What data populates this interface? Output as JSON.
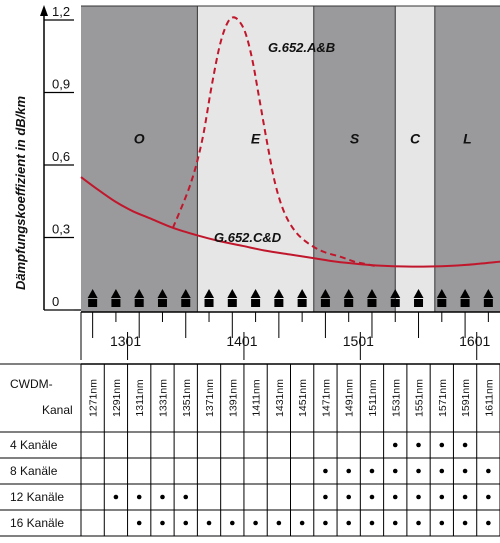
{
  "chart_data": {
    "type": "line",
    "ylabel": "Dämpfungskoeffizient in dB/km",
    "y_ticks": [
      "0",
      "0,3",
      "0,6",
      "0,9",
      "1,2"
    ],
    "ylim": [
      0,
      1.25
    ],
    "xlim": [
      1261,
      1621
    ],
    "x_tick_labels": [
      "1301",
      "1401",
      "1501",
      "1601"
    ],
    "x_ticks": [
      1301,
      1401,
      1501,
      1601
    ],
    "bands": [
      {
        "label": "O",
        "start": 1261,
        "end": 1361,
        "color": "#9a9a9c"
      },
      {
        "label": "E",
        "start": 1361,
        "end": 1461,
        "color": "#e6e6e6"
      },
      {
        "label": "S",
        "start": 1461,
        "end": 1531,
        "color": "#9a9a9c"
      },
      {
        "label": "C",
        "start": 1531,
        "end": 1565,
        "color": "#e6e6e6"
      },
      {
        "label": "L",
        "start": 1565,
        "end": 1621,
        "color": "#9a9a9c"
      }
    ],
    "series": [
      {
        "name": "G.652.A&B",
        "style": "dashed",
        "color": "#c0172c",
        "x": [
          1340,
          1355,
          1365,
          1373,
          1380,
          1386,
          1391,
          1396,
          1402,
          1408,
          1414,
          1421,
          1428,
          1436,
          1446,
          1458,
          1470,
          1484,
          1496,
          1506,
          1516
        ],
        "y": [
          0.34,
          0.52,
          0.7,
          0.92,
          1.09,
          1.18,
          1.21,
          1.2,
          1.15,
          1.04,
          0.88,
          0.69,
          0.52,
          0.4,
          0.32,
          0.27,
          0.24,
          0.22,
          0.2,
          0.19,
          0.18
        ]
      },
      {
        "name": "G.652.C&D",
        "style": "solid",
        "color": "#c0172c",
        "x": [
          1261,
          1275,
          1290,
          1305,
          1320,
          1340,
          1360,
          1380,
          1400,
          1420,
          1440,
          1460,
          1480,
          1500,
          1520,
          1540,
          1560,
          1580,
          1600,
          1621
        ],
        "y": [
          0.55,
          0.5,
          0.45,
          0.41,
          0.38,
          0.34,
          0.31,
          0.285,
          0.265,
          0.245,
          0.23,
          0.215,
          0.2,
          0.19,
          0.183,
          0.18,
          0.18,
          0.183,
          0.19,
          0.2
        ]
      }
    ],
    "channel_markers": [
      1271,
      1291,
      1311,
      1331,
      1351,
      1371,
      1391,
      1411,
      1431,
      1451,
      1471,
      1491,
      1511,
      1531,
      1551,
      1571,
      1591,
      1611
    ]
  },
  "table": {
    "header_label_line1": "CWDM-",
    "header_label_line2": "Kanal",
    "channels": [
      "1271nm",
      "1291nm",
      "1311nm",
      "1331nm",
      "1351nm",
      "1371nm",
      "1391nm",
      "1411nm",
      "1431nm",
      "1451nm",
      "1471nm",
      "1491nm",
      "1511nm",
      "1531nm",
      "1551nm",
      "1571nm",
      "1591nm",
      "1611nm"
    ],
    "rows": [
      {
        "label": "4 Kanäle",
        "dots": [
          0,
          0,
          0,
          0,
          0,
          0,
          0,
          0,
          0,
          0,
          0,
          0,
          0,
          1,
          1,
          1,
          1,
          0
        ]
      },
      {
        "label": "8 Kanäle",
        "dots": [
          0,
          0,
          0,
          0,
          0,
          0,
          0,
          0,
          0,
          0,
          1,
          1,
          1,
          1,
          1,
          1,
          1,
          1
        ]
      },
      {
        "label": "12 Kanäle",
        "dots": [
          0,
          1,
          1,
          1,
          1,
          0,
          0,
          0,
          0,
          0,
          1,
          1,
          1,
          1,
          1,
          1,
          1,
          1
        ]
      },
      {
        "label": "16 Kanäle",
        "dots": [
          0,
          0,
          1,
          1,
          1,
          1,
          1,
          1,
          1,
          1,
          1,
          1,
          1,
          1,
          1,
          1,
          1,
          1
        ]
      }
    ]
  }
}
